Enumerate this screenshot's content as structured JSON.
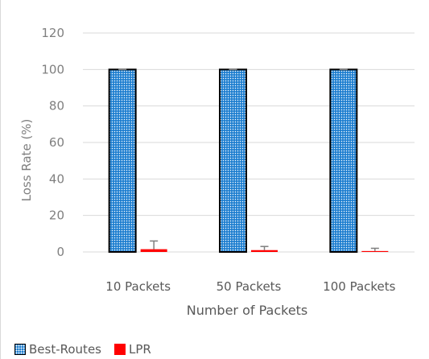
{
  "chart_data": {
    "type": "bar",
    "categories": [
      "10 Packets",
      "50 Packets",
      "100 Packets"
    ],
    "series": [
      {
        "name": "Best-Routes",
        "values": [
          100,
          100,
          100
        ],
        "error": [
          0,
          0,
          0
        ],
        "color": "#1f7fd0",
        "pattern": "dotted"
      },
      {
        "name": "LPR",
        "values": [
          1.5,
          1.0,
          0.5
        ],
        "error": [
          4.5,
          2.0,
          1.5
        ],
        "color": "#ff0000"
      }
    ],
    "title": "",
    "xlabel": "Number of Packets",
    "ylabel": "Loss Rate (%)",
    "ylim": [
      0,
      120
    ],
    "yticks": [
      "0",
      "20",
      "40",
      "60",
      "80",
      "100",
      "120"
    ],
    "grid": true,
    "legend_position": "bottom-left"
  }
}
